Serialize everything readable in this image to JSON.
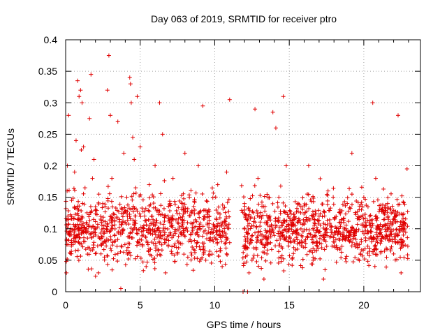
{
  "chart_data": {
    "type": "scatter",
    "title": "Day 063 of 2019, SRMTID for receiver ptro",
    "xlabel": "GPS time / hours",
    "ylabel": "SRMTID / TECUs",
    "xlim": [
      0,
      23.8
    ],
    "ylim": [
      0,
      0.4
    ],
    "x_ticks": [
      0,
      5,
      10,
      15,
      20
    ],
    "x_tick_labels": [
      "0",
      "5",
      "10",
      "15",
      "20"
    ],
    "y_ticks": [
      0,
      0.05,
      0.1,
      0.15,
      0.2,
      0.25,
      0.3,
      0.35,
      0.4
    ],
    "y_tick_labels": [
      "0",
      "0.05",
      "0.1",
      "0.15",
      "0.2",
      "0.25",
      "0.3",
      "0.35",
      "0.4"
    ],
    "grid": true,
    "marker": "plus",
    "color": "#e00000",
    "gap_hours": [
      11.0,
      11.8
    ],
    "series": [
      {
        "name": "SRMTID",
        "points": [
          [
            0.05,
            0.03
          ],
          [
            0.08,
            0.075
          ],
          [
            0.1,
            0.16
          ],
          [
            0.12,
            0.2
          ],
          [
            0.15,
            0.12
          ],
          [
            0.2,
            0.28
          ],
          [
            0.3,
            0.09
          ],
          [
            0.4,
            0.145
          ],
          [
            0.5,
            0.075
          ],
          [
            0.6,
            0.19
          ],
          [
            0.7,
            0.24
          ],
          [
            0.8,
            0.335
          ],
          [
            0.9,
            0.31
          ],
          [
            1.0,
            0.32
          ],
          [
            1.05,
            0.225
          ],
          [
            1.1,
            0.3
          ],
          [
            1.2,
            0.23
          ],
          [
            1.3,
            0.165
          ],
          [
            1.4,
            0.1
          ],
          [
            1.5,
            0.07
          ],
          [
            1.6,
            0.275
          ],
          [
            1.7,
            0.345
          ],
          [
            1.8,
            0.18
          ],
          [
            1.9,
            0.21
          ],
          [
            2.0,
            0.135
          ],
          [
            2.2,
            0.03
          ],
          [
            2.4,
            0.11
          ],
          [
            2.6,
            0.055
          ],
          [
            2.8,
            0.32
          ],
          [
            2.9,
            0.375
          ],
          [
            3.0,
            0.28
          ],
          [
            3.1,
            0.18
          ],
          [
            3.3,
            0.09
          ],
          [
            3.5,
            0.27
          ],
          [
            3.7,
            0.005
          ],
          [
            3.9,
            0.22
          ],
          [
            4.1,
            0.15
          ],
          [
            4.3,
            0.34
          ],
          [
            4.35,
            0.33
          ],
          [
            4.4,
            0.3
          ],
          [
            4.5,
            0.245
          ],
          [
            4.6,
            0.21
          ],
          [
            4.7,
            0.165
          ],
          [
            4.8,
            0.31
          ],
          [
            5.0,
            0.23
          ],
          [
            5.2,
            0.09
          ],
          [
            5.4,
            0.04
          ],
          [
            5.6,
            0.17
          ],
          [
            5.8,
            0.12
          ],
          [
            6.0,
            0.2
          ],
          [
            6.3,
            0.3
          ],
          [
            6.5,
            0.25
          ],
          [
            6.7,
            0.03
          ],
          [
            7.0,
            0.14
          ],
          [
            7.2,
            0.18
          ],
          [
            7.5,
            0.06
          ],
          [
            7.8,
            0.09
          ],
          [
            8.0,
            0.22
          ],
          [
            8.3,
            0.15
          ],
          [
            8.6,
            0.11
          ],
          [
            8.9,
            0.2
          ],
          [
            9.2,
            0.295
          ],
          [
            9.4,
            0.05
          ],
          [
            9.6,
            0.13
          ],
          [
            9.9,
            0.08
          ],
          [
            10.2,
            0.17
          ],
          [
            10.5,
            0.04
          ],
          [
            10.8,
            0.19
          ],
          [
            11.0,
            0.305
          ],
          [
            11.9,
            0.0
          ],
          [
            12.0,
            0.14
          ],
          [
            12.1,
            0.07
          ],
          [
            12.2,
            0.0
          ],
          [
            12.3,
            0.03
          ],
          [
            12.5,
            0.05
          ],
          [
            12.7,
            0.29
          ],
          [
            12.9,
            0.18
          ],
          [
            13.1,
            0.09
          ],
          [
            13.3,
            0.02
          ],
          [
            13.5,
            0.06
          ],
          [
            13.7,
            0.12
          ],
          [
            13.9,
            0.285
          ],
          [
            14.1,
            0.26
          ],
          [
            14.3,
            0.15
          ],
          [
            14.6,
            0.31
          ],
          [
            14.8,
            0.2
          ],
          [
            15.0,
            0.1
          ],
          [
            15.3,
            0.07
          ],
          [
            15.6,
            0.14
          ],
          [
            16.0,
            0.08
          ],
          [
            16.3,
            0.2
          ],
          [
            16.6,
            0.05
          ],
          [
            17.0,
            0.12
          ],
          [
            17.3,
            0.02
          ],
          [
            17.6,
            0.16
          ],
          [
            18.0,
            0.09
          ],
          [
            18.4,
            0.13
          ],
          [
            18.8,
            0.1
          ],
          [
            19.2,
            0.22
          ],
          [
            19.6,
            0.07
          ],
          [
            20.0,
            0.15
          ],
          [
            20.4,
            0.12
          ],
          [
            20.6,
            0.3
          ],
          [
            20.8,
            0.18
          ],
          [
            21.2,
            0.08
          ],
          [
            21.6,
            0.14
          ],
          [
            22.0,
            0.06
          ],
          [
            22.3,
            0.28
          ],
          [
            22.5,
            0.03
          ],
          [
            22.7,
            0.11
          ],
          [
            22.9,
            0.195
          ]
        ],
        "dense_band_y": [
          0.02,
          0.21
        ],
        "dense_band_center_y": 0.1,
        "dense_points_count": 1800
      }
    ]
  }
}
